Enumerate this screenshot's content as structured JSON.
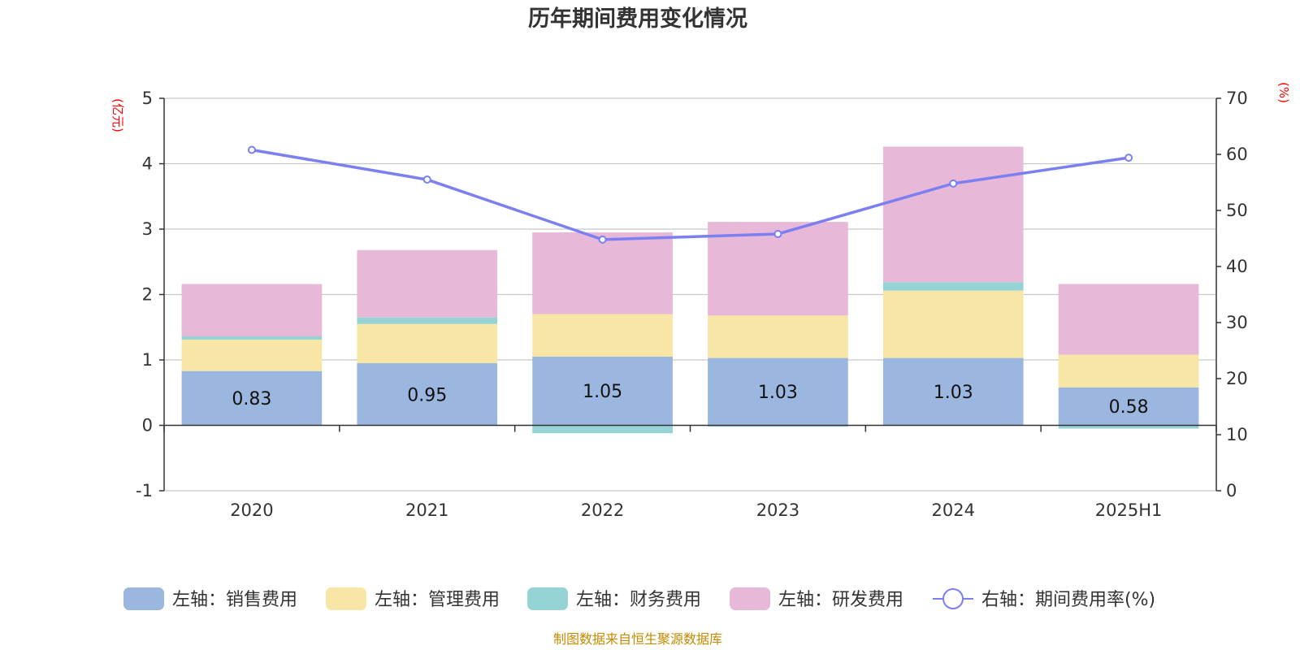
{
  "chart_data": {
    "type": "bar",
    "title": "历年期间费用变化情况",
    "categories": [
      "2020",
      "2021",
      "2022",
      "2023",
      "2024",
      "2025H1"
    ],
    "left_axis": {
      "unit_label": "(亿元)",
      "ylim": [
        -1,
        5
      ],
      "ticks": [
        -1,
        0,
        1,
        2,
        3,
        4,
        5
      ]
    },
    "right_axis": {
      "unit_label": "(%)",
      "ylim": [
        0,
        70
      ],
      "ticks": [
        0,
        10,
        20,
        30,
        40,
        50,
        60,
        70
      ]
    },
    "series": [
      {
        "name": "左轴：销售费用",
        "type": "bar",
        "axis": "left",
        "color": "#9bb7e0",
        "values": [
          0.83,
          0.95,
          1.05,
          1.03,
          1.03,
          0.58
        ],
        "show_labels": true
      },
      {
        "name": "左轴：管理费用",
        "type": "bar",
        "axis": "left",
        "color": "#f7e6a6",
        "values": [
          0.48,
          0.6,
          0.65,
          0.65,
          1.03,
          0.5
        ]
      },
      {
        "name": "左轴：财务费用",
        "type": "bar",
        "axis": "left",
        "color": "#96d3d4",
        "values": [
          0.05,
          0.1,
          -0.12,
          -0.02,
          0.13,
          -0.05
        ]
      },
      {
        "name": "左轴：研发费用",
        "type": "bar",
        "axis": "left",
        "color": "#e8b8d8",
        "values": [
          0.8,
          1.03,
          1.25,
          1.43,
          2.07,
          1.08
        ]
      },
      {
        "name": "右轴：期间费用率(%)",
        "type": "line",
        "axis": "right",
        "color": "#7b7fef",
        "values": [
          60.8,
          55.5,
          44.8,
          45.8,
          54.8,
          59.4
        ]
      }
    ],
    "grid": true,
    "legend_position": "bottom"
  },
  "source_note": "制图数据来自恒生聚源数据库"
}
